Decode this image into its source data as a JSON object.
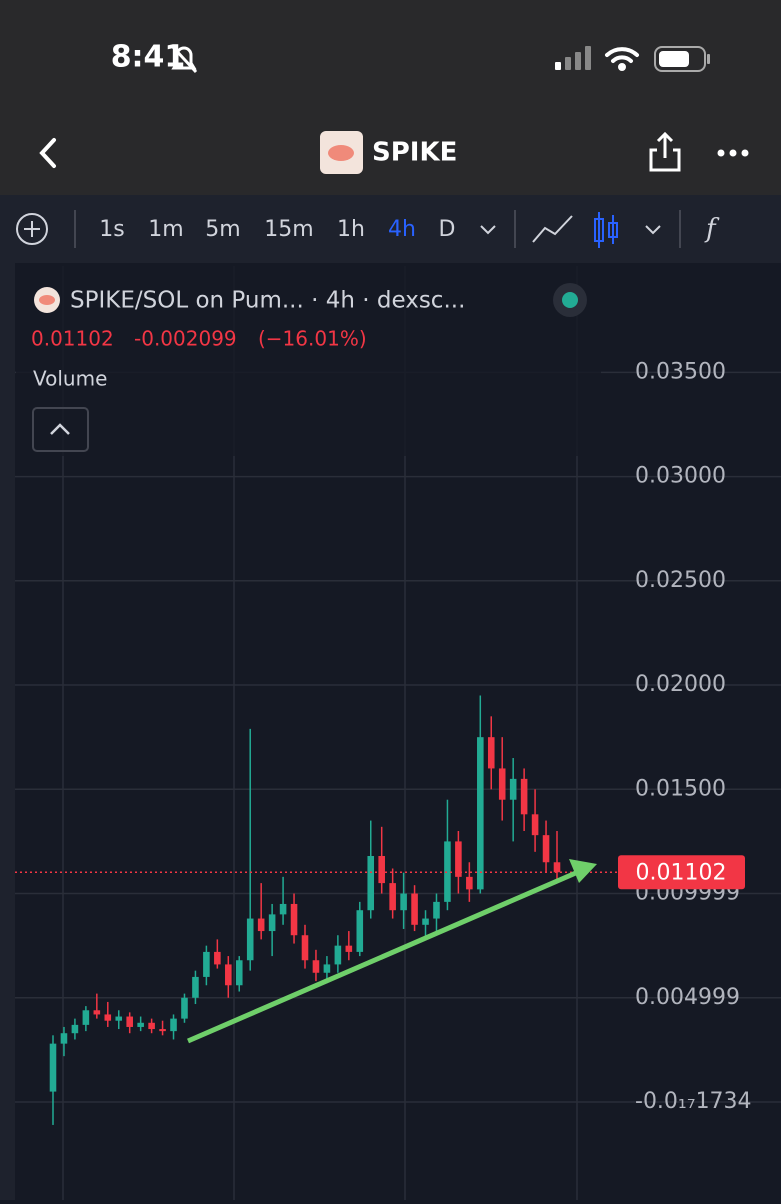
{
  "status_bar": {
    "time": "8:41"
  },
  "header": {
    "title": "SPIKE"
  },
  "toolbar": {
    "intervals": [
      "1s",
      "1m",
      "5m",
      "15m",
      "1h",
      "4h",
      "D"
    ],
    "active": 5
  },
  "chart_data": {
    "type": "candlestick",
    "title": "SPIKE/SOL on Pum... · 4h · dexsc...",
    "last_price": 0.01102,
    "change": -0.002099,
    "change_pct": {
      "value": -16.01,
      "label": "(−16.01%)"
    },
    "volume_label": "Volume",
    "up_color": "#22ab94",
    "down_color": "#f23645",
    "ylim": [
      -0.0047,
      0.0401
    ],
    "yticks": [
      {
        "value": 0.035,
        "label": "0.03500"
      },
      {
        "value": 0.03,
        "label": "0.03000"
      },
      {
        "value": 0.025,
        "label": "0.02500"
      },
      {
        "value": 0.02,
        "label": "0.02000"
      },
      {
        "value": 0.015,
        "label": "0.01500"
      },
      0.009999,
      0.004999,
      {
        "value": -1.734e-18,
        "label": "-0.0₁₇1734"
      }
    ],
    "grid": true,
    "open": [
      0.0005,
      0.0028,
      0.0033,
      0.0037,
      0.0044,
      0.0042,
      0.0039,
      0.0041,
      0.0036,
      0.0038,
      0.0035,
      0.0034,
      0.004,
      0.005,
      0.006,
      0.0072,
      0.0066,
      0.0056,
      0.0068,
      0.0088,
      0.0082,
      0.009,
      0.0095,
      0.008,
      0.0068,
      0.0062,
      0.0066,
      0.0075,
      0.0072,
      0.0092,
      0.0118,
      0.0105,
      0.0092,
      0.01,
      0.0085,
      0.0088,
      0.0096,
      0.0125,
      0.0108,
      0.0102,
      0.0175,
      0.016,
      0.0145,
      0.0155,
      0.0138,
      0.0128,
      0.0115
    ],
    "high": [
      0.0032,
      0.0036,
      0.004,
      0.0046,
      0.0052,
      0.0048,
      0.0044,
      0.0043,
      0.0041,
      0.004,
      0.0039,
      0.0042,
      0.0052,
      0.0063,
      0.0075,
      0.0078,
      0.007,
      0.007,
      0.0179,
      0.0105,
      0.0095,
      0.0108,
      0.01,
      0.0085,
      0.0073,
      0.007,
      0.008,
      0.0082,
      0.0096,
      0.0135,
      0.0132,
      0.0112,
      0.011,
      0.0104,
      0.0092,
      0.01,
      0.0145,
      0.013,
      0.0115,
      0.0195,
      0.0185,
      0.0175,
      0.0165,
      0.016,
      0.015,
      0.0135,
      0.013
    ],
    "low": [
      -0.0011,
      0.0022,
      0.003,
      0.0034,
      0.004,
      0.0036,
      0.0035,
      0.0033,
      0.0034,
      0.0033,
      0.0032,
      0.003,
      0.0038,
      0.0047,
      0.0056,
      0.0064,
      0.005,
      0.0053,
      0.0063,
      0.0078,
      0.007,
      0.0085,
      0.0076,
      0.0064,
      0.0058,
      0.0057,
      0.0062,
      0.0068,
      0.007,
      0.0088,
      0.01,
      0.0088,
      0.0083,
      0.0082,
      0.0078,
      0.008,
      0.0092,
      0.01,
      0.0096,
      0.01,
      0.015,
      0.0135,
      0.0125,
      0.013,
      0.012,
      0.011,
      0.0105
    ],
    "close": [
      0.0028,
      0.0033,
      0.0037,
      0.0044,
      0.0042,
      0.0039,
      0.0041,
      0.0036,
      0.0038,
      0.0035,
      0.0034,
      0.004,
      0.005,
      0.006,
      0.0072,
      0.0066,
      0.0056,
      0.0068,
      0.0088,
      0.0082,
      0.009,
      0.0095,
      0.008,
      0.0068,
      0.0062,
      0.0066,
      0.0075,
      0.0072,
      0.0092,
      0.0118,
      0.0105,
      0.0092,
      0.01,
      0.0085,
      0.0088,
      0.0096,
      0.0125,
      0.0108,
      0.0102,
      0.0175,
      0.016,
      0.0145,
      0.0155,
      0.0138,
      0.0128,
      0.0115,
      0.01102
    ]
  }
}
